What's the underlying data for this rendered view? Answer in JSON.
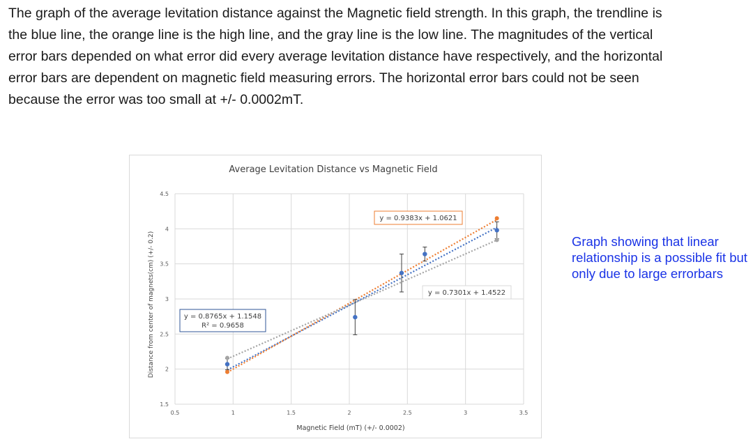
{
  "caption": {
    "text": "The graph of the average levitation distance against the Magnetic field strength. In this graph, the trendline is the blue line, the orange line is the high line, and the gray line is the low line. The magnitudes of the vertical error bars depended on what error did every average levitation distance have respectively, and the horizontal error bars are dependent on magnetic field measuring errors. The horizontal error bars could not be seen because the error was too small at +/- 0.0002mT."
  },
  "side_note": {
    "text": "Graph showing that linear relationship is a possible fit but only due to large errorbars"
  },
  "chart_data": {
    "type": "scatter",
    "title": "Average Levitation Distance vs Magnetic Field",
    "xlabel": "Magnetic Field (mT) (+/- 0.0002)",
    "ylabel": "Distance from center of magnets(cm) (+/- 0.2)",
    "xlim": [
      0.5,
      3.5
    ],
    "ylim": [
      1.5,
      4.5
    ],
    "x_ticks": [
      "0.5",
      "1",
      "1.5",
      "2",
      "2.5",
      "3",
      "3.5"
    ],
    "y_ticks": [
      "1.5",
      "2",
      "2.5",
      "3",
      "3.5",
      "4",
      "4.5"
    ],
    "grid": true,
    "series": [
      {
        "x": [
          0.95,
          2.05,
          2.45,
          2.65,
          3.27
        ],
        "y": [
          2.07,
          2.74,
          3.37,
          3.64,
          3.98
        ],
        "error_y": [
          0.08,
          0.25,
          0.27,
          0.1,
          0.12
        ],
        "color": "#4472c4"
      }
    ],
    "high_points": {
      "x": [
        0.95,
        3.27
      ],
      "y": [
        1.96,
        4.15
      ],
      "color": "#ed7d31"
    },
    "low_points": {
      "x": [
        0.95,
        3.27
      ],
      "y": [
        2.16,
        3.84
      ],
      "color": "#a5a5a5"
    },
    "trendlines": [
      {
        "role": "trendline",
        "slope": 0.8765,
        "intercept": 1.1548,
        "x_range": [
          0.95,
          3.27
        ],
        "color": "#4472c4",
        "equation": "y = 0.8765x + 1.1548",
        "r2": "R² = 0.9658"
      },
      {
        "role": "high line",
        "slope": 0.9383,
        "intercept": 1.0621,
        "x_range": [
          0.95,
          3.27
        ],
        "color": "#ed7d31",
        "equation": "y = 0.9383x + 1.0621"
      },
      {
        "role": "low line",
        "slope": 0.7301,
        "intercept": 1.4522,
        "x_range": [
          0.95,
          3.27
        ],
        "color": "#a5a5a5",
        "equation": "y = 0.7301x + 1.4522"
      }
    ]
  }
}
